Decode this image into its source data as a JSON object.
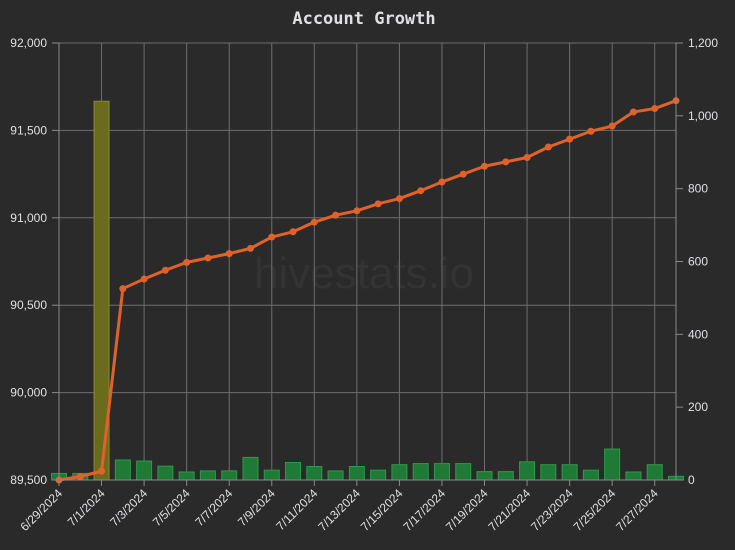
{
  "chart_data": {
    "type": "bar+line",
    "title": "Account Growth",
    "watermark": "hivestats.io",
    "x": [
      "6/29/2024",
      "6/30/2024",
      "7/1/2024",
      "7/2/2024",
      "7/3/2024",
      "7/4/2024",
      "7/5/2024",
      "7/6/2024",
      "7/7/2024",
      "7/8/2024",
      "7/9/2024",
      "7/10/2024",
      "7/11/2024",
      "7/12/2024",
      "7/13/2024",
      "7/14/2024",
      "7/15/2024",
      "7/16/2024",
      "7/17/2024",
      "7/18/2024",
      "7/19/2024",
      "7/20/2024",
      "7/21/2024",
      "7/22/2024",
      "7/23/2024",
      "7/24/2024",
      "7/25/2024",
      "7/26/2024",
      "7/27/2024",
      "7/28/2024"
    ],
    "x_tick_labels": [
      "6/29/2024",
      "7/1/2024",
      "7/3/2024",
      "7/5/2024",
      "7/7/2024",
      "7/9/2024",
      "7/11/2024",
      "7/13/2024",
      "7/15/2024",
      "7/17/2024",
      "7/19/2024",
      "7/21/2024",
      "7/23/2024",
      "7/25/2024",
      "7/27/2024"
    ],
    "y_left": {
      "ylim": [
        89500,
        92000
      ],
      "ticks": [
        "89,500",
        "90,000",
        "90,500",
        "91,000",
        "91,500",
        "92,000"
      ],
      "tick_values": [
        89500,
        90000,
        90500,
        91000,
        91500,
        92000
      ]
    },
    "y_right": {
      "ylim": [
        0,
        1200
      ],
      "ticks": [
        "0",
        "200",
        "400",
        "600",
        "800",
        "1,000",
        "1,200"
      ],
      "tick_values": [
        0,
        200,
        400,
        600,
        800,
        1000,
        1200
      ]
    },
    "grid": true,
    "series": [
      {
        "type": "bar",
        "axis": "right",
        "color": "#1e7a35",
        "highlight_color": "#6b6b1e",
        "values": [
          18,
          18,
          1040,
          55,
          52,
          38,
          22,
          25,
          25,
          62,
          27,
          48,
          37,
          25,
          37,
          27,
          42,
          45,
          45,
          45,
          23,
          23,
          50,
          42,
          42,
          27,
          85,
          22,
          42,
          10
        ]
      },
      {
        "type": "line",
        "axis": "left",
        "color": "#e0622a",
        "values": [
          89500,
          89520,
          89550,
          90595,
          90650,
          90700,
          90745,
          90770,
          90795,
          90825,
          90890,
          90920,
          90975,
          91015,
          91040,
          91080,
          91110,
          91155,
          91205,
          91250,
          91295,
          91320,
          91345,
          91405,
          91450,
          91495,
          91525,
          91605,
          91625,
          91670
        ]
      }
    ]
  }
}
